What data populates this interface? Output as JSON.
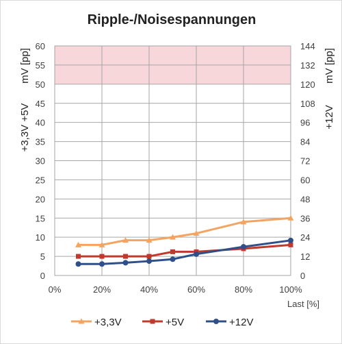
{
  "chart_data": {
    "type": "line",
    "title": "Ripple-/Noisespannungen",
    "xlabel": "Last [%]",
    "ylabel_left": {
      "line1": "mV [pp]",
      "line2": "+3,3V  +5V"
    },
    "ylabel_right": {
      "line1": "mV [pp]",
      "line2": "+12V"
    },
    "x_ticks": [
      "0%",
      "20%",
      "40%",
      "60%",
      "80%",
      "100%"
    ],
    "xlim": [
      0,
      100
    ],
    "ylim_left": [
      0,
      60
    ],
    "ylim_right": [
      0,
      144
    ],
    "y_ticks_left": [
      "0",
      "5",
      "10",
      "15",
      "20",
      "25",
      "30",
      "35",
      "40",
      "45",
      "50",
      "55",
      "60"
    ],
    "y_ticks_right": [
      "0",
      "12",
      "24",
      "36",
      "48",
      "60",
      "72",
      "84",
      "96",
      "108",
      "120",
      "132",
      "144"
    ],
    "grid": true,
    "limit_band": {
      "from": 50,
      "to": 60,
      "axis": "left",
      "color": "#f8d7da"
    },
    "legend_position": "bottom",
    "series": [
      {
        "name": "+3,3V",
        "axis": "left",
        "color": "#f4a460",
        "marker": "triangle",
        "x": [
          10,
          20,
          30,
          40,
          50,
          60,
          80,
          100
        ],
        "y": [
          8,
          8,
          9.2,
          9.2,
          10,
          11,
          14,
          15
        ]
      },
      {
        "name": "+5V",
        "axis": "left",
        "color": "#c0392b",
        "marker": "square",
        "x": [
          10,
          20,
          30,
          40,
          50,
          60,
          80,
          100
        ],
        "y": [
          5,
          5,
          5,
          5,
          6.2,
          6.2,
          7,
          8
        ]
      },
      {
        "name": "+12V",
        "axis": "right",
        "color": "#2e4f8a",
        "marker": "circle",
        "x": [
          10,
          20,
          30,
          40,
          50,
          60,
          80,
          100
        ],
        "y": [
          7.2,
          7.2,
          8,
          9,
          10.2,
          13.4,
          18,
          22
        ]
      }
    ]
  }
}
